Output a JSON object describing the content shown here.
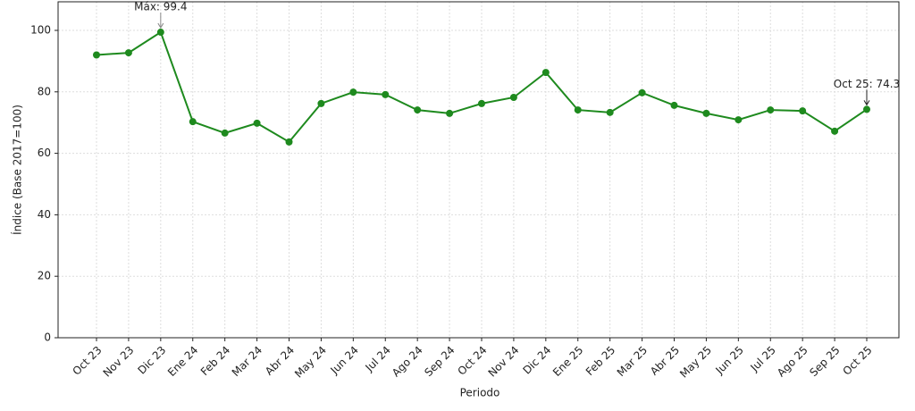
{
  "chart_data": {
    "type": "line",
    "x_label": "Periodo",
    "y_label": "Índice (Base 2017=100)",
    "categories": [
      "Oct 23",
      "Nov 23",
      "Dic 23",
      "Ene 24",
      "Feb 24",
      "Mar 24",
      "Abr 24",
      "May 24",
      "Jun 24",
      "Jul 24",
      "Ago 24",
      "Sep 24",
      "Oct 24",
      "Nov 24",
      "Dic 24",
      "Ene 25",
      "Feb 25",
      "Mar 25",
      "Abr 25",
      "May 25",
      "Jun 25",
      "Jul 25",
      "Ago 25",
      "Sep 25",
      "Oct 25"
    ],
    "series": [
      {
        "color": "#1e8a1e",
        "values": [
          92.0,
          92.7,
          99.4,
          70.3,
          66.6,
          69.8,
          63.7,
          76.2,
          79.9,
          79.1,
          74.1,
          73.0,
          76.2,
          78.2,
          86.3,
          74.1,
          73.3,
          79.7,
          75.6,
          73.0,
          70.9,
          74.1,
          73.8,
          67.2,
          74.3
        ]
      }
    ],
    "ylim": [
      0,
      109.3
    ],
    "yticks": [
      0,
      20,
      40,
      60,
      80,
      100
    ],
    "grid": true,
    "annotations": [
      {
        "text": "Máx: 99.4",
        "x": "Dic 23",
        "y": 99.4
      },
      {
        "text": "Oct 25: 74.3",
        "x": "Oct 25",
        "y": 74.3
      }
    ]
  }
}
